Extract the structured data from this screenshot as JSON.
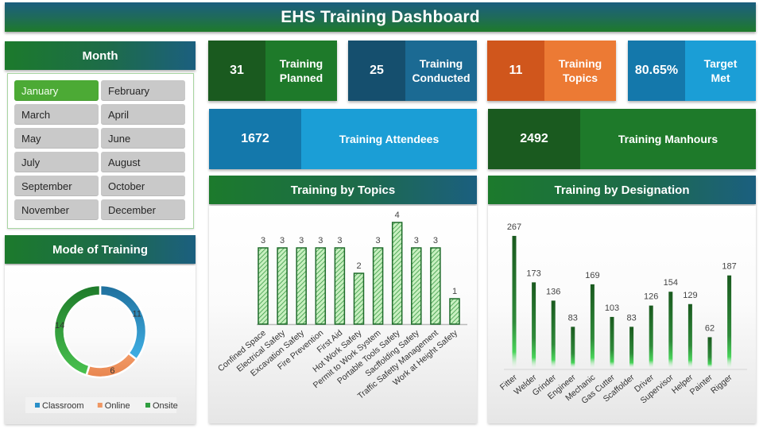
{
  "header": {
    "title": "EHS Training Dashboard"
  },
  "month_slicer": {
    "title": "Month",
    "selected": "January",
    "months": [
      "January",
      "February",
      "March",
      "April",
      "May",
      "June",
      "July",
      "August",
      "September",
      "October",
      "November",
      "December"
    ]
  },
  "kpis": {
    "planned": {
      "value": "31",
      "label_line1": "Training",
      "label_line2": "Planned"
    },
    "conducted": {
      "value": "25",
      "label_line1": "Training",
      "label_line2": "Conducted"
    },
    "topics": {
      "value": "11",
      "label_line1": "Training",
      "label_line2": "Topics"
    },
    "target": {
      "value": "80.65%",
      "label_line1": "Target",
      "label_line2": "Met"
    },
    "attendees": {
      "value": "1672",
      "label": "Training Attendees"
    },
    "manhours": {
      "value": "2492",
      "label": "Training Manhours"
    }
  },
  "colors": {
    "green_dark": "#1a5a1f",
    "green": "#1e7a2a",
    "blue_dark": "#154f6e",
    "blue": "#1b6a93",
    "orange_dark": "#d0561c",
    "orange": "#ec7a34",
    "cyan_dark": "#1478ab",
    "cyan": "#1b9ed6",
    "classroom": "#2a8fc8",
    "online": "#ef9763",
    "onsite": "#2f9e3f"
  },
  "sections": {
    "mode": "Mode of Training",
    "topics": "Training by Topics",
    "designation": "Training by Designation"
  },
  "chart_data": [
    {
      "type": "pie",
      "subtype": "donut",
      "title": "Mode of Training",
      "categories": [
        "Classroom",
        "Online",
        "Onsite"
      ],
      "values": [
        11,
        6,
        14
      ],
      "legend_position": "bottom"
    },
    {
      "type": "bar",
      "title": "Training by Topics",
      "categories": [
        "Confined Space",
        "Electrical Safety",
        "Excavation Safety",
        "Fire Prevention",
        "First Aid",
        "Hot Work Safety",
        "Permit to Work System",
        "Portable Tools Safety",
        "Sacffolding Safety",
        "Traffic Safetty Management",
        "Work at Height Safety"
      ],
      "values": [
        3,
        3,
        3,
        3,
        3,
        2,
        3,
        4,
        3,
        3,
        1
      ],
      "xlabel": "",
      "ylabel": "",
      "grid": false,
      "data_labels": true
    },
    {
      "type": "bar",
      "title": "Training by Designation",
      "categories": [
        "Fitter",
        "Welder",
        "Grinder",
        "Engineer",
        "Mechanic",
        "Gas Cutter",
        "Scaffolder",
        "Driver",
        "Supervisor",
        "Helper",
        "Painter",
        "Rigger"
      ],
      "values": [
        267,
        173,
        136,
        83,
        169,
        103,
        83,
        126,
        154,
        129,
        62,
        187
      ],
      "xlabel": "",
      "ylabel": "",
      "grid": false,
      "data_labels": true
    }
  ]
}
